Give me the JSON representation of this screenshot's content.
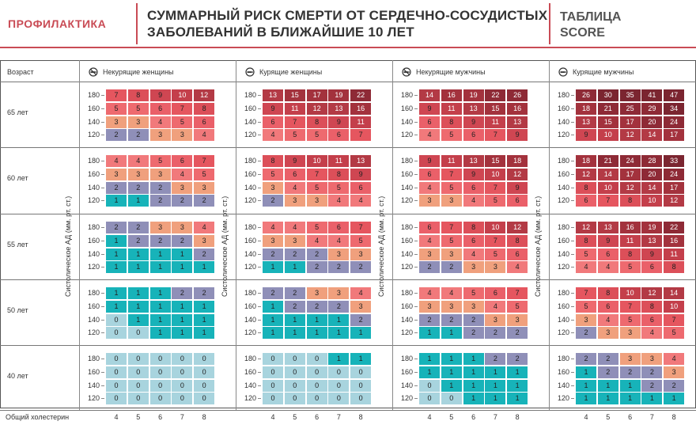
{
  "header": {
    "left": "ПРОФИЛАКТИКА",
    "title_line1": "СУММАРНЫЙ РИСК СМЕРТИ ОТ СЕРДЕЧНО-СОСУДИСТЫХ",
    "title_line2": "ЗАБОЛЕВАНИЙ В БЛИЖАЙШИЕ 10 ЛЕТ",
    "right_line1": "ТАБЛИЦА",
    "right_line2": "SCORE"
  },
  "labels": {
    "age": "Возраст",
    "cholesterol": "Общий холестерин",
    "bp_axis": "Систолическое АД (мм. рт. ст.)"
  },
  "groups": [
    {
      "name": "Некурящие женщины",
      "icon": "no-smoking-icon"
    },
    {
      "name": "Курящие женщины",
      "icon": "smoking-icon"
    },
    {
      "name": "Некурящие мужчины",
      "icon": "no-smoking-icon"
    },
    {
      "name": "Курящие мужчины",
      "icon": "smoking-icon"
    }
  ],
  "ages": [
    "65 лет",
    "60 лет",
    "55 лет",
    "50 лет",
    "40 лет"
  ],
  "bp": [
    "180",
    "160",
    "140",
    "120"
  ],
  "cholesterol": [
    "4",
    "5",
    "6",
    "7",
    "8"
  ],
  "colors": {
    "0": "#a8d4de",
    "1": "#17b3b9",
    "2": "#8f8fb8",
    "3": "#f0a07d",
    "4": "#f1797b",
    "5": "#ee6a6f",
    "6": "#ea6069",
    "7": "#e5565f",
    "8": "#dc4f59",
    "9": "#cf4652",
    "10": "#c43f4b",
    "12": "#b33a45",
    "15": "#a3323d",
    "20": "#8e2a36",
    "30": "#7b2530"
  },
  "values": [
    [
      [
        [
          "7",
          "8",
          "9",
          "10",
          "12"
        ],
        [
          "5",
          "5",
          "6",
          "7",
          "8"
        ],
        [
          "3",
          "3",
          "4",
          "5",
          "6"
        ],
        [
          "2",
          "2",
          "3",
          "3",
          "4"
        ]
      ],
      [
        [
          "13",
          "15",
          "17",
          "19",
          "22"
        ],
        [
          "9",
          "11",
          "12",
          "13",
          "16"
        ],
        [
          "6",
          "7",
          "8",
          "9",
          "11"
        ],
        [
          "4",
          "5",
          "5",
          "6",
          "7"
        ]
      ],
      [
        [
          "14",
          "16",
          "19",
          "22",
          "26"
        ],
        [
          "9",
          "11",
          "13",
          "15",
          "16"
        ],
        [
          "6",
          "8",
          "9",
          "11",
          "13"
        ],
        [
          "4",
          "5",
          "6",
          "7",
          "9"
        ]
      ],
      [
        [
          "26",
          "30",
          "35",
          "41",
          "47"
        ],
        [
          "18",
          "21",
          "25",
          "29",
          "34"
        ],
        [
          "13",
          "15",
          "17",
          "20",
          "24"
        ],
        [
          "9",
          "10",
          "12",
          "14",
          "17"
        ]
      ]
    ],
    [
      [
        [
          "4",
          "4",
          "5",
          "6",
          "7"
        ],
        [
          "3",
          "3",
          "3",
          "4",
          "5"
        ],
        [
          "2",
          "2",
          "2",
          "3",
          "3"
        ],
        [
          "1",
          "1",
          "2",
          "2",
          "2"
        ]
      ],
      [
        [
          "8",
          "9",
          "10",
          "11",
          "13"
        ],
        [
          "5",
          "6",
          "7",
          "8",
          "9"
        ],
        [
          "3",
          "4",
          "5",
          "5",
          "6"
        ],
        [
          "2",
          "3",
          "3",
          "4",
          "4"
        ]
      ],
      [
        [
          "9",
          "11",
          "13",
          "15",
          "18"
        ],
        [
          "6",
          "7",
          "9",
          "10",
          "12"
        ],
        [
          "4",
          "5",
          "6",
          "7",
          "9"
        ],
        [
          "3",
          "3",
          "4",
          "5",
          "6"
        ]
      ],
      [
        [
          "18",
          "21",
          "24",
          "28",
          "33"
        ],
        [
          "12",
          "14",
          "17",
          "20",
          "24"
        ],
        [
          "8",
          "10",
          "12",
          "14",
          "17"
        ],
        [
          "6",
          "7",
          "8",
          "10",
          "12"
        ]
      ]
    ],
    [
      [
        [
          "2",
          "2",
          "3",
          "3",
          "4"
        ],
        [
          "1",
          "2",
          "2",
          "2",
          "3"
        ],
        [
          "1",
          "1",
          "1",
          "1",
          "2"
        ],
        [
          "1",
          "1",
          "1",
          "1",
          "1"
        ]
      ],
      [
        [
          "4",
          "4",
          "5",
          "6",
          "7"
        ],
        [
          "3",
          "3",
          "4",
          "4",
          "5"
        ],
        [
          "2",
          "2",
          "2",
          "3",
          "3"
        ],
        [
          "1",
          "1",
          "2",
          "2",
          "2"
        ]
      ],
      [
        [
          "6",
          "7",
          "8",
          "10",
          "12"
        ],
        [
          "4",
          "5",
          "6",
          "7",
          "8"
        ],
        [
          "3",
          "3",
          "4",
          "5",
          "6"
        ],
        [
          "2",
          "2",
          "3",
          "3",
          "4"
        ]
      ],
      [
        [
          "12",
          "13",
          "16",
          "19",
          "22"
        ],
        [
          "8",
          "9",
          "11",
          "13",
          "16"
        ],
        [
          "5",
          "6",
          "8",
          "9",
          "11"
        ],
        [
          "4",
          "4",
          "5",
          "6",
          "8"
        ]
      ]
    ],
    [
      [
        [
          "1",
          "1",
          "1",
          "2",
          "2"
        ],
        [
          "1",
          "1",
          "1",
          "1",
          "1"
        ],
        [
          "0",
          "1",
          "1",
          "1",
          "1"
        ],
        [
          "0",
          "0",
          "1",
          "1",
          "1"
        ]
      ],
      [
        [
          "2",
          "2",
          "3",
          "3",
          "4"
        ],
        [
          "1",
          "2",
          "2",
          "2",
          "3"
        ],
        [
          "1",
          "1",
          "1",
          "1",
          "2"
        ],
        [
          "1",
          "1",
          "1",
          "1",
          "1"
        ]
      ],
      [
        [
          "4",
          "4",
          "5",
          "6",
          "7"
        ],
        [
          "3",
          "3",
          "3",
          "4",
          "5"
        ],
        [
          "2",
          "2",
          "2",
          "3",
          "3"
        ],
        [
          "1",
          "1",
          "2",
          "2",
          "2"
        ]
      ],
      [
        [
          "7",
          "8",
          "10",
          "12",
          "14"
        ],
        [
          "5",
          "6",
          "7",
          "8",
          "10"
        ],
        [
          "3",
          "4",
          "5",
          "6",
          "7"
        ],
        [
          "2",
          "3",
          "3",
          "4",
          "5"
        ]
      ]
    ],
    [
      [
        [
          "0",
          "0",
          "0",
          "0",
          "0"
        ],
        [
          "0",
          "0",
          "0",
          "0",
          "0"
        ],
        [
          "0",
          "0",
          "0",
          "0",
          "0"
        ],
        [
          "0",
          "0",
          "0",
          "0",
          "0"
        ]
      ],
      [
        [
          "0",
          "0",
          "0",
          "1",
          "1"
        ],
        [
          "0",
          "0",
          "0",
          "0",
          "0"
        ],
        [
          "0",
          "0",
          "0",
          "0",
          "0"
        ],
        [
          "0",
          "0",
          "0",
          "0",
          "0"
        ]
      ],
      [
        [
          "1",
          "1",
          "1",
          "2",
          "2"
        ],
        [
          "1",
          "1",
          "1",
          "1",
          "1"
        ],
        [
          "0",
          "1",
          "1",
          "1",
          "1"
        ],
        [
          "0",
          "0",
          "1",
          "1",
          "1"
        ]
      ],
      [
        [
          "2",
          "2",
          "3",
          "3",
          "4"
        ],
        [
          "1",
          "2",
          "2",
          "2",
          "3"
        ],
        [
          "1",
          "1",
          "1",
          "2",
          "2"
        ],
        [
          "1",
          "1",
          "1",
          "1",
          "1"
        ]
      ]
    ]
  ]
}
